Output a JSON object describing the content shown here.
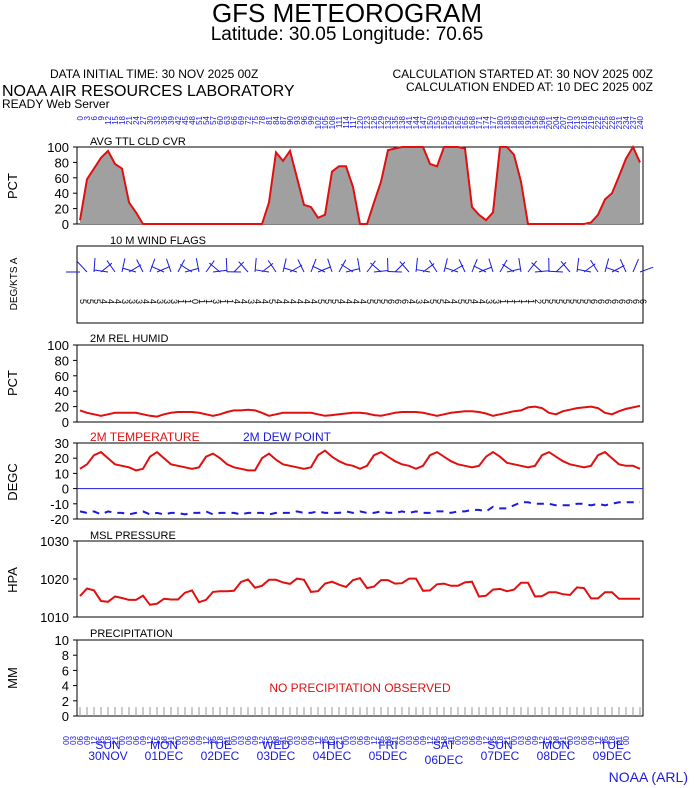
{
  "header": {
    "title": "GFS METEOROGRAM",
    "subtitle": "Latitude: 30.05 Longitude:  70.65",
    "init_time": "DATA INITIAL TIME: 30 NOV 2025 00Z",
    "calc_started": "CALCULATION STARTED AT: 30 NOV 2025 00Z",
    "calc_ended": "CALCULATION ENDED AT: 10 DEC 2025 00Z",
    "lab": "NOAA AIR RESOURCES LABORATORY",
    "server": "READY Web Server",
    "credit": "NOAA (ARL)"
  },
  "colors": {
    "red": "#e01010",
    "blue": "#1a1ae0",
    "fill": "#a0a0a0"
  },
  "chart_data": [
    {
      "type": "area",
      "title": "AVG TTL CLD CVR",
      "ylabel": "PCT",
      "ylim": [
        0,
        100
      ],
      "yticks": [
        0,
        20,
        40,
        60,
        80,
        100
      ],
      "x_hours": [
        0,
        3,
        6,
        9,
        12,
        15,
        18,
        21,
        24,
        27,
        30,
        33,
        36,
        39,
        42,
        45,
        48,
        51,
        54,
        57,
        60,
        63,
        66,
        69,
        72,
        75,
        78,
        81,
        84,
        87,
        90,
        93,
        96,
        99,
        102,
        105,
        108,
        111,
        114,
        117,
        120,
        123,
        126,
        129,
        132,
        135,
        138,
        141,
        144,
        147,
        150,
        153,
        156,
        159,
        162,
        165,
        168,
        171,
        174,
        177,
        180,
        183,
        186,
        189,
        192,
        195,
        198,
        201,
        204,
        207,
        210,
        213,
        216,
        219,
        222,
        225,
        228,
        231,
        234,
        237,
        240
      ],
      "series": [
        {
          "values": [
            5,
            58,
            72,
            86,
            95,
            78,
            72,
            28,
            15,
            0,
            0,
            0,
            0,
            0,
            0,
            0,
            0,
            0,
            0,
            0,
            0,
            0,
            0,
            0,
            0,
            0,
            0,
            28,
            93,
            82,
            95,
            60,
            25,
            22,
            8,
            12,
            68,
            75,
            75,
            48,
            0,
            0,
            28,
            55,
            96,
            98,
            100,
            100,
            100,
            100,
            78,
            75,
            100,
            100,
            100,
            98,
            22,
            12,
            5,
            15,
            100,
            100,
            90,
            55,
            0,
            0,
            0,
            0,
            0,
            0,
            0,
            0,
            0,
            2,
            12,
            32,
            40,
            62,
            85,
            100,
            80
          ]
        }
      ]
    },
    {
      "type": "wind",
      "title": "10 M  WIND FLAGS",
      "ylabel": "DEG/KTS  A",
      "speed_labels": [
        "5",
        "5",
        "5",
        "4",
        "4",
        "4",
        "3",
        "3",
        "3",
        "4",
        "4",
        "3",
        "3",
        "3",
        "1",
        "1",
        "0",
        "1",
        "1",
        "3",
        "1",
        "1",
        "4",
        "4",
        "3",
        "4",
        "4",
        "5",
        "4",
        "4",
        "4",
        "4",
        "4",
        "4",
        "5",
        "5",
        "5",
        "4",
        "4",
        "4",
        "4",
        "5",
        "5",
        "5",
        "6",
        "6",
        "6",
        "4",
        "3",
        "4",
        "5",
        "5",
        "4",
        "4",
        "5",
        "5",
        "4",
        "4",
        "3",
        "3",
        "1",
        "1",
        "1",
        "1",
        "1",
        "2",
        "5",
        "5",
        "5",
        "5",
        "5",
        "5",
        "5",
        "6",
        "6",
        "6",
        "6",
        "6",
        "6",
        "6",
        "6"
      ]
    },
    {
      "type": "line",
      "title": "2M REL HUMID",
      "ylabel": "PCT",
      "ylim": [
        0,
        100
      ],
      "yticks": [
        0,
        20,
        40,
        60,
        80,
        100
      ],
      "series": [
        {
          "values": [
            15,
            12,
            10,
            8,
            10,
            12,
            12,
            12,
            12,
            10,
            8,
            7,
            10,
            12,
            13,
            13,
            13,
            12,
            10,
            8,
            10,
            13,
            15,
            15,
            16,
            15,
            12,
            8,
            10,
            12,
            12,
            12,
            12,
            12,
            10,
            8,
            9,
            10,
            11,
            12,
            12,
            11,
            9,
            8,
            10,
            12,
            13,
            13,
            13,
            12,
            10,
            8,
            10,
            12,
            13,
            14,
            14,
            13,
            11,
            8,
            10,
            12,
            14,
            15,
            19,
            20,
            18,
            12,
            10,
            14,
            16,
            18,
            19,
            20,
            18,
            12,
            10,
            14,
            17,
            19,
            21
          ]
        }
      ]
    },
    {
      "type": "line",
      "title": "2M TEMPERATURE",
      "title2": "2M  DEW POINT",
      "ylabel": "DEGC",
      "ylim": [
        -20,
        30
      ],
      "yticks": [
        -20,
        -10,
        0,
        10,
        20,
        30
      ],
      "series": [
        {
          "name": "2M TEMPERATURE",
          "values": [
            13,
            16,
            22,
            24,
            20,
            16,
            15,
            14,
            12,
            13,
            21,
            24,
            20,
            16,
            15,
            14,
            13,
            14,
            21,
            23,
            20,
            16,
            14,
            13,
            12,
            12,
            20,
            23,
            19,
            16,
            15,
            14,
            13,
            14,
            22,
            25,
            21,
            18,
            16,
            15,
            13,
            15,
            22,
            24,
            21,
            18,
            16,
            15,
            13,
            15,
            22,
            24,
            21,
            18,
            16,
            15,
            14,
            15,
            21,
            24,
            21,
            17,
            16,
            15,
            14,
            15,
            22,
            24,
            21,
            18,
            16,
            15,
            14,
            15,
            22,
            24,
            20,
            16,
            15,
            15,
            13
          ]
        },
        {
          "name": "2M  DEW POINT",
          "values": [
            -15,
            -16,
            -15,
            -17,
            -15,
            -16,
            -16,
            -17,
            -16,
            -15,
            -17,
            -16,
            -17,
            -16,
            -16,
            -17,
            -16,
            -16,
            -15,
            -17,
            -16,
            -16,
            -16,
            -17,
            -16,
            -16,
            -16,
            -17,
            -16,
            -16,
            -16,
            -15,
            -16,
            -16,
            -15,
            -16,
            -16,
            -16,
            -15,
            -16,
            -15,
            -16,
            -16,
            -15,
            -16,
            -16,
            -15,
            -16,
            -15,
            -16,
            -16,
            -15,
            -15,
            -16,
            -15,
            -15,
            -14,
            -14,
            -15,
            -12,
            -13,
            -13,
            -11,
            -9,
            -9,
            -10,
            -10,
            -10,
            -11,
            -11,
            -11,
            -10,
            -10,
            -11,
            -10,
            -11,
            -10,
            -9,
            -9,
            -9,
            -9
          ]
        }
      ]
    },
    {
      "type": "line",
      "title": "MSL PRESSURE",
      "ylabel": "HPA",
      "ylim": [
        1010,
        1030
      ],
      "yticks": [
        1010,
        1020,
        1030
      ],
      "series": [
        {
          "values": [
            1015.5,
            1017.5,
            1017,
            1014.2,
            1014,
            1015.4,
            1015,
            1014.5,
            1014.5,
            1015.6,
            1013.2,
            1013.5,
            1014.8,
            1014.6,
            1014.6,
            1016.4,
            1017,
            1013.9,
            1014.5,
            1016.6,
            1016.8,
            1016.8,
            1016.9,
            1019.2,
            1019.9,
            1017.7,
            1018.2,
            1019.8,
            1019.8,
            1019.1,
            1018.7,
            1020.1,
            1019.8,
            1016.6,
            1016.8,
            1018.8,
            1019.3,
            1018.5,
            1017.9,
            1019.7,
            1020.2,
            1017.6,
            1018,
            1019.7,
            1019.7,
            1018.8,
            1018.9,
            1020.1,
            1020.1,
            1016.9,
            1017,
            1018.6,
            1018.8,
            1018.2,
            1018.2,
            1019.1,
            1019.3,
            1015.4,
            1015.6,
            1017.2,
            1017.4,
            1016.8,
            1017.2,
            1019,
            1019,
            1015.4,
            1015.5,
            1016.5,
            1016.5,
            1016,
            1015.8,
            1017.8,
            1017.6,
            1014.9,
            1014.9,
            1016.5,
            1016.5,
            1014.8,
            1014.8,
            1014.8,
            1014.8
          ]
        }
      ]
    },
    {
      "type": "bar",
      "title": "PRECIPITATION",
      "ylabel": "MM",
      "ylim": [
        0,
        10
      ],
      "yticks": [
        0,
        2,
        4,
        6,
        8,
        10
      ],
      "note": "NO PRECIPITATION OBSERVED",
      "series": [
        {
          "values": [
            0,
            0,
            0,
            0,
            0,
            0,
            0,
            0,
            0,
            0,
            0,
            0,
            0,
            0,
            0,
            0,
            0,
            0,
            0,
            0,
            0,
            0,
            0,
            0,
            0,
            0,
            0,
            0,
            0,
            0,
            0,
            0,
            0,
            0,
            0,
            0,
            0,
            0,
            0,
            0,
            0,
            0,
            0,
            0,
            0,
            0,
            0,
            0,
            0,
            0,
            0,
            0,
            0,
            0,
            0,
            0,
            0,
            0,
            0,
            0,
            0,
            0,
            0,
            0,
            0,
            0,
            0,
            0,
            0,
            0,
            0,
            0,
            0,
            0,
            0,
            0,
            0,
            0,
            0,
            0,
            0
          ]
        }
      ]
    }
  ],
  "time_axis": {
    "hour_labels": [
      "00",
      "03",
      "06",
      "09",
      "12",
      "15",
      "18",
      "21"
    ],
    "days": [
      {
        "dow": "SUN",
        "date": "30NOV"
      },
      {
        "dow": "MON",
        "date": "01DEC"
      },
      {
        "dow": "TUE",
        "date": "02DEC"
      },
      {
        "dow": "WED",
        "date": "03DEC"
      },
      {
        "dow": "THU",
        "date": "04DEC"
      },
      {
        "dow": "FRI",
        "date": "05DEC"
      },
      {
        "dow": "SAT",
        "date": "06DEC"
      },
      {
        "dow": "SUN",
        "date": "07DEC"
      },
      {
        "dow": "MON",
        "date": "08DEC"
      },
      {
        "dow": "TUE",
        "date": "09DEC"
      }
    ]
  }
}
